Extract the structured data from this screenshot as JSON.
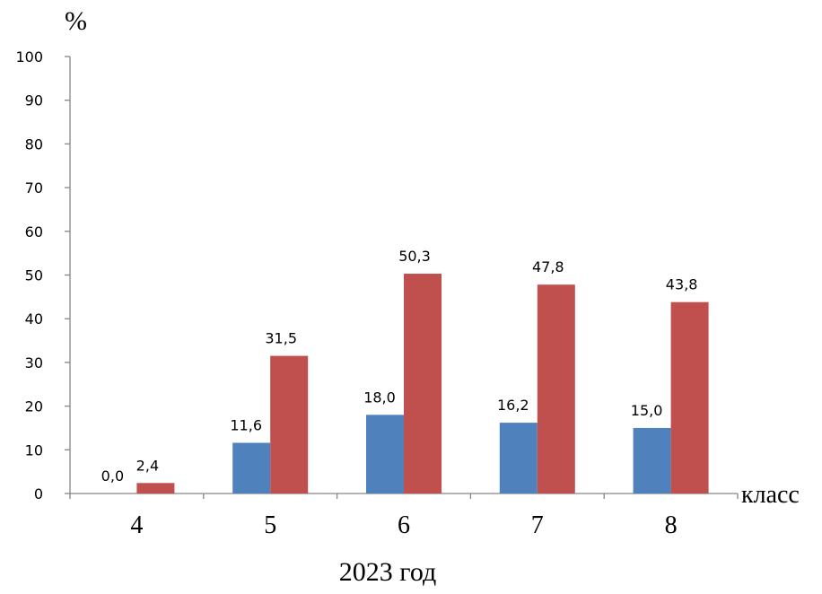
{
  "chart_data": {
    "type": "bar",
    "categories": [
      "4",
      "5",
      "6",
      "7",
      "8"
    ],
    "series": [
      {
        "values": [
          0.0,
          11.6,
          18.0,
          16.2,
          15.0
        ],
        "labels": [
          "0,0",
          "11,6",
          "18,0",
          "16,2",
          "15,0"
        ],
        "color": "#4F81BD"
      },
      {
        "values": [
          2.4,
          31.5,
          50.3,
          47.8,
          43.8
        ],
        "labels": [
          "2,4",
          "31,5",
          "50,3",
          "47,8",
          "43,8"
        ],
        "color": "#C0504D"
      }
    ],
    "ylabel": "%",
    "xlabel": "класс",
    "caption": "2023 год",
    "ylim": [
      0,
      100
    ],
    "yticks": [
      0,
      10,
      20,
      30,
      40,
      50,
      60,
      70,
      80,
      90,
      100
    ],
    "grid": false,
    "legend": "none"
  }
}
